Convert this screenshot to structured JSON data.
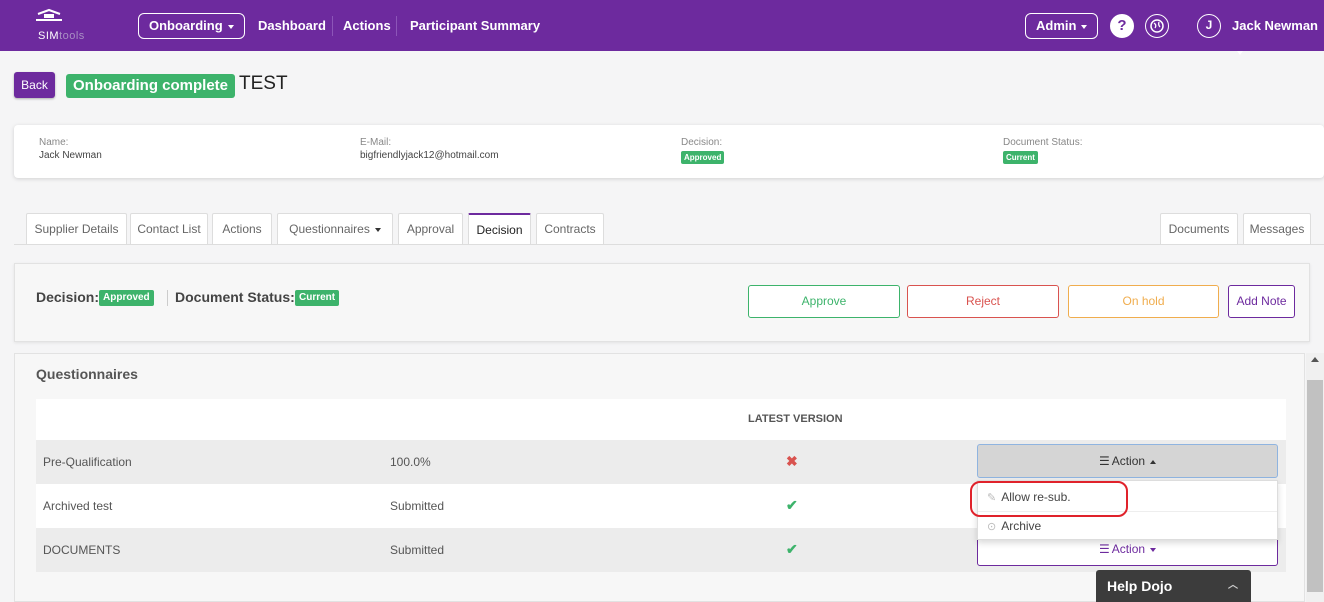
{
  "nav": {
    "logo_text": "SIM",
    "logo_text_faded": "tools",
    "onboarding": "Onboarding",
    "dashboard": "Dashboard",
    "actions": "Actions",
    "participant_summary": "Participant Summary",
    "admin": "Admin",
    "help": "?",
    "user_initial": "J",
    "user_name": "Jack Newman"
  },
  "header": {
    "back": "Back",
    "status": "Onboarding complete",
    "title": "TEST"
  },
  "info": {
    "name_label": "Name:",
    "name_value": "Jack Newman",
    "email_label": "E-Mail:",
    "email_value": "bigfriendlyjack12@hotmail.com",
    "decision_label": "Decision:",
    "decision_value": "Approved",
    "doc_status_label": "Document Status:",
    "doc_status_value": "Current"
  },
  "tabs": {
    "supplier_details": "Supplier Details",
    "contact_list": "Contact List",
    "actions": "Actions",
    "questionnaires": "Questionnaires",
    "approval": "Approval",
    "decision": "Decision",
    "contracts": "Contracts",
    "documents": "Documents",
    "messages": "Messages",
    "active": "Decision"
  },
  "decision_panel": {
    "decision_label": "Decision:",
    "decision_value": "Approved",
    "doc_status_label": "Document Status:",
    "doc_status_value": "Current",
    "approve": "Approve",
    "reject": "Reject",
    "on_hold": "On hold",
    "add_note": "Add Note"
  },
  "questionnaires": {
    "title": "Questionnaires",
    "column_latest_version": "LATEST VERSION",
    "rows": [
      {
        "name": "Pre-Qualification",
        "value": "100.0%",
        "status": "cross",
        "action": "Action"
      },
      {
        "name": "Archived test",
        "value": "Submitted",
        "status": "tick"
      },
      {
        "name": "DOCUMENTS",
        "value": "Submitted",
        "status": "tick",
        "action": "Action"
      }
    ],
    "dropdown": {
      "allow_resub": "Allow re-sub.",
      "archive": "Archive"
    }
  },
  "help_dojo": "Help Dojo",
  "colors": {
    "brand": "#6d2a9e",
    "success": "#3db36b",
    "danger": "#d9534f",
    "warning": "#f0ad4e",
    "highlight": "#e0222b"
  }
}
